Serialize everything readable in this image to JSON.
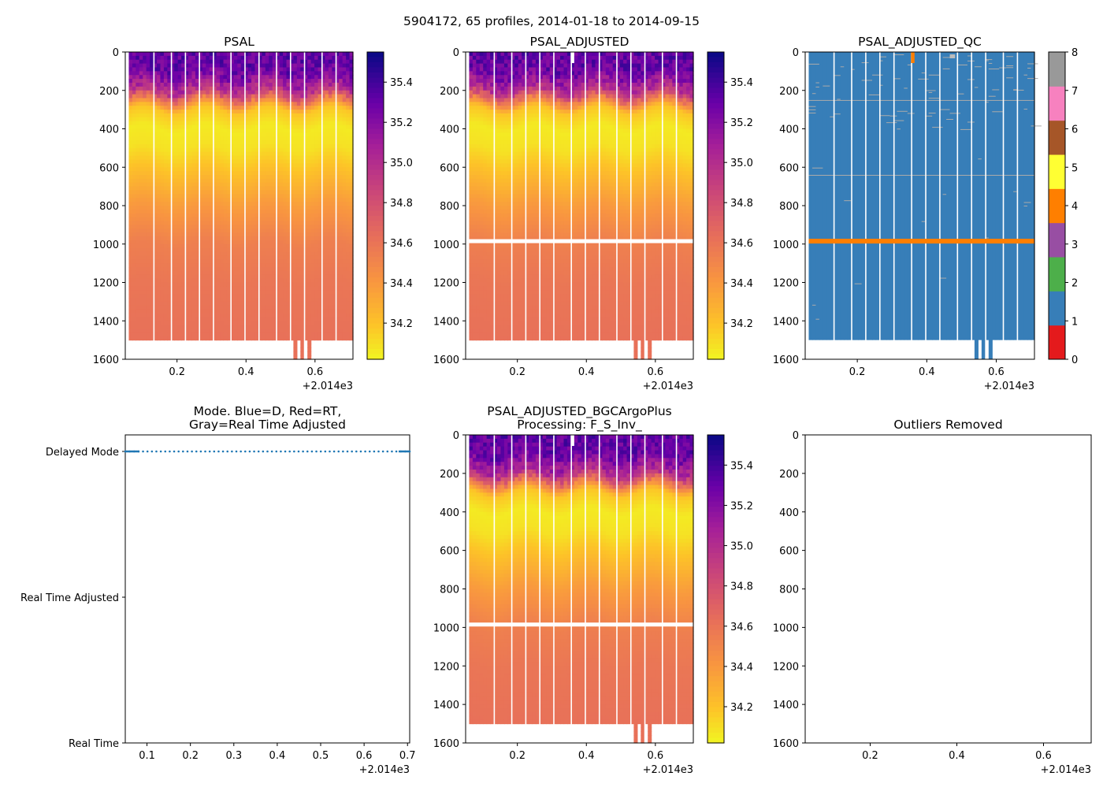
{
  "figure": {
    "title": "5904172, 65 profiles, 2014-01-18 to 2014-09-15"
  },
  "chart_data": [
    {
      "id": "psal",
      "type": "heatmap",
      "title": "PSAL",
      "x_offset_label": "+2.014e3",
      "xlim": [
        0.05,
        0.71
      ],
      "x_ticks": [
        "0.2",
        "0.4",
        "0.6"
      ],
      "ylim": [
        1600,
        0
      ],
      "ylabel": "",
      "y_ticks": [
        "0",
        "200",
        "400",
        "600",
        "800",
        "1000",
        "1200",
        "1400",
        "1600"
      ],
      "colorbar": {
        "colormap": "plasma_r",
        "range": [
          34.02,
          35.55
        ],
        "ticks": [
          "34.2",
          "34.4",
          "34.6",
          "34.8",
          "35.0",
          "35.2",
          "35.4"
        ]
      },
      "salinity_profile": {
        "depths": [
          0,
          100,
          200,
          300,
          400,
          500,
          600,
          800,
          1000,
          1200,
          1400,
          1500
        ],
        "values": [
          35.33,
          35.3,
          35.0,
          34.2,
          34.07,
          34.1,
          34.2,
          34.4,
          34.55,
          34.6,
          34.62,
          34.63
        ]
      },
      "profile_bottom_m": 1500,
      "deep_profiles_bottom_m": 1600
    },
    {
      "id": "psal_adj",
      "type": "heatmap",
      "title": "PSAL_ADJUSTED",
      "x_offset_label": "+2.014e3",
      "xlim": [
        0.05,
        0.71
      ],
      "x_ticks": [
        "0.2",
        "0.4",
        "0.6"
      ],
      "ylim": [
        1600,
        0
      ],
      "y_ticks": [
        "0",
        "200",
        "400",
        "600",
        "800",
        "1000",
        "1200",
        "1400",
        "1600"
      ],
      "colorbar": {
        "colormap": "plasma_r",
        "range": [
          34.02,
          35.55
        ],
        "ticks": [
          "34.2",
          "34.4",
          "34.6",
          "34.8",
          "35.0",
          "35.2",
          "35.4"
        ]
      },
      "missing_band_m": 985
    },
    {
      "id": "psal_qc",
      "type": "heatmap",
      "title": "PSAL_ADJUSTED_QC",
      "x_offset_label": "+2.014e3",
      "xlim": [
        0.05,
        0.71
      ],
      "x_ticks": [
        "0.2",
        "0.4",
        "0.6"
      ],
      "ylim": [
        1600,
        0
      ],
      "y_ticks": [
        "0",
        "200",
        "400",
        "600",
        "800",
        "1000",
        "1200",
        "1400",
        "1600"
      ],
      "colorbar": {
        "type": "discrete",
        "ticks": [
          "0",
          "1",
          "2",
          "3",
          "4",
          "5",
          "6",
          "7",
          "8"
        ],
        "colors": [
          "#e41a1c",
          "#377eb8",
          "#4daf4a",
          "#984ea3",
          "#ff7f00",
          "#ffff33",
          "#a65628",
          "#f781bf",
          "#999999"
        ]
      },
      "dominant_flag": 1,
      "bad_band_flag": 4,
      "bad_band_m": 985
    },
    {
      "id": "mode",
      "type": "scatter",
      "title": "Mode. Blue=D, Red=RT,\nGray=Real Time Adjusted",
      "x_offset_label": "+2.014e3",
      "xlim": [
        0.05,
        0.705
      ],
      "x_ticks": [
        "0.1",
        "0.2",
        "0.3",
        "0.4",
        "0.5",
        "0.6",
        "0.7"
      ],
      "categories": [
        "Delayed Mode",
        "Real Time Adjusted",
        "Real Time"
      ],
      "series": [
        {
          "name": "D",
          "color": "#1f77b4",
          "category": "Delayed Mode",
          "n_points": 65,
          "x_range": [
            0.05,
            0.705
          ]
        }
      ]
    },
    {
      "id": "psal_bgc",
      "type": "heatmap",
      "title": "PSAL_ADJUSTED_BGCArgoPlus\nProcessing: F_S_Inv_",
      "x_offset_label": "+2.014e3",
      "xlim": [
        0.05,
        0.71
      ],
      "x_ticks": [
        "0.2",
        "0.4",
        "0.6"
      ],
      "ylim": [
        1600,
        0
      ],
      "y_ticks": [
        "0",
        "200",
        "400",
        "600",
        "800",
        "1000",
        "1200",
        "1400",
        "1600"
      ],
      "colorbar": {
        "colormap": "plasma_r",
        "range": [
          34.02,
          35.55
        ],
        "ticks": [
          "34.2",
          "34.4",
          "34.6",
          "34.8",
          "35.0",
          "35.2",
          "35.4"
        ]
      },
      "missing_band_m": 985
    },
    {
      "id": "outliers",
      "type": "scatter",
      "title": "Outliers Removed",
      "x_offset_label": "+2.014e3",
      "xlim": [
        0.05,
        0.71
      ],
      "x_ticks": [
        "0.2",
        "0.4",
        "0.6"
      ],
      "ylim": [
        1600,
        0
      ],
      "y_ticks": [
        "0",
        "200",
        "400",
        "600",
        "800",
        "1000",
        "1200",
        "1400",
        "1600"
      ],
      "series": []
    }
  ]
}
